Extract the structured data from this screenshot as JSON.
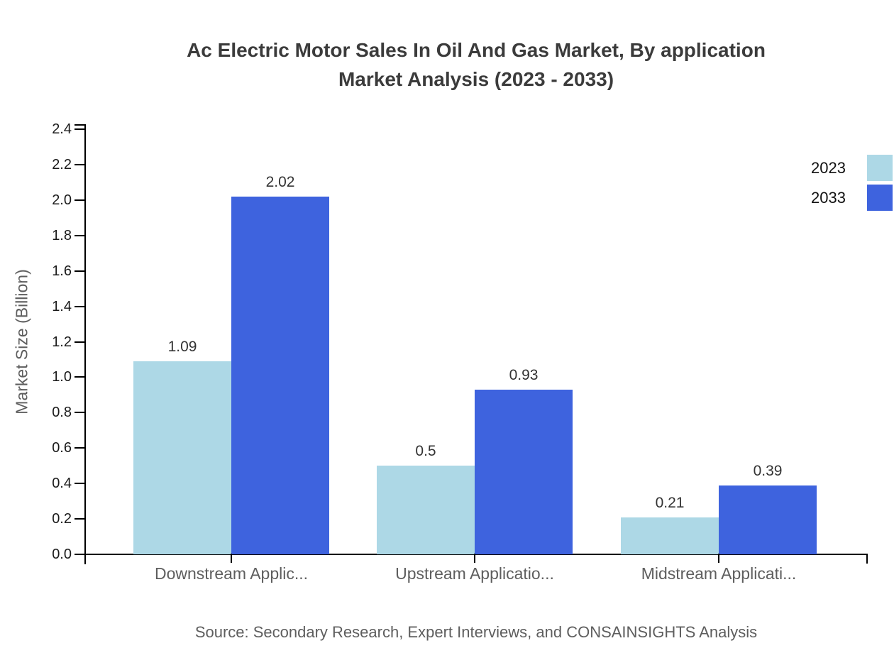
{
  "header": {
    "title_line1": "Ac Electric Motor Sales In Oil And Gas Market, By application",
    "title_line2": "Market Analysis (2023 - 2033)"
  },
  "footer": {
    "source": "Source: Secondary Research, Expert Interviews, and CONSAINSIGHTS Analysis"
  },
  "colors": {
    "series_2023": "#ADD8E6",
    "series_2033": "#3E63DE",
    "axis": "#000000",
    "title_text": "#3B3B3B",
    "muted_text": "#5E5E5E",
    "value_text": "#333333"
  },
  "chart_data": {
    "type": "bar",
    "title": "Ac Electric Motor Sales In Oil And Gas Market, By application Market Analysis (2023 - 2033)",
    "categories": [
      "Downstream Applic...",
      "Upstream Applicatio...",
      "Midstream Applicati..."
    ],
    "series": [
      {
        "name": "2023",
        "color": "#ADD8E6",
        "values": [
          1.09,
          0.5,
          0.21
        ]
      },
      {
        "name": "2033",
        "color": "#3E63DE",
        "values": [
          2.02,
          0.93,
          0.39
        ]
      }
    ],
    "value_labels": [
      [
        "1.09",
        "0.5",
        "0.21"
      ],
      [
        "2.02",
        "0.93",
        "0.39"
      ]
    ],
    "xlabel": "",
    "ylabel": "Market Size (Billion)",
    "ylim": [
      0,
      2.4
    ],
    "ytick_step": 0.2,
    "yticks": [
      "0.0",
      "0.2",
      "0.4",
      "0.6",
      "0.8",
      "1.0",
      "1.2",
      "1.4",
      "1.6",
      "1.8",
      "2.0",
      "2.2",
      "2.4"
    ],
    "grid": false,
    "legend_position": "top-right"
  }
}
